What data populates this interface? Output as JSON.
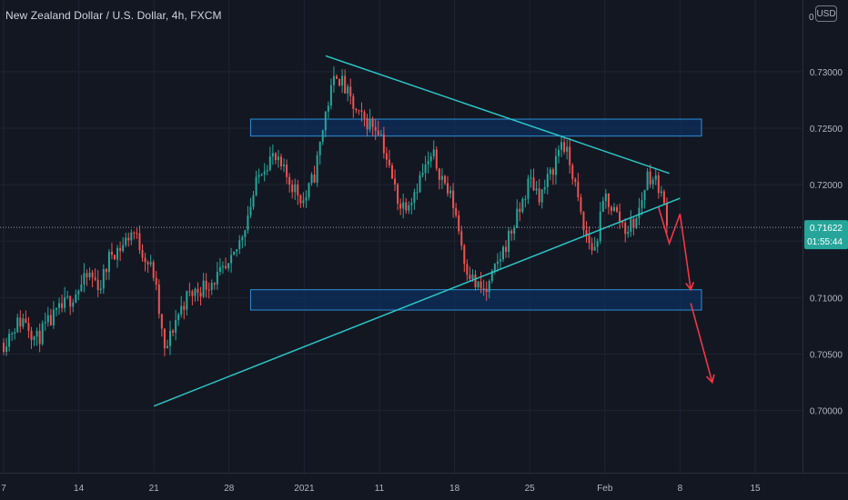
{
  "header": {
    "title": "New Zealand Dollar / U.S. Dollar, 4h, FXCM",
    "currency": "USD"
  },
  "colors": {
    "background": "#131722",
    "grid": "#1e2433",
    "up": "#26a69a",
    "down": "#ef5350",
    "trendline": "#2ac6c6",
    "zone_fill": "#0d2f5c",
    "zone_border": "#2b8fd6",
    "projection": "#f23645",
    "price_label_bg": "#26a69a",
    "axis_text": "#b2b5be"
  },
  "chart_data": {
    "type": "candlestick",
    "y_axis": {
      "range": [
        0.6945,
        0.7357
      ],
      "ticks": [
        0.7,
        0.705,
        0.71,
        0.715,
        0.72,
        0.725,
        0.73
      ],
      "tick_labels": [
        "0.70000",
        "0.70500",
        "0.71000",
        "0.71500",
        "0.72000",
        "0.72500",
        "0.73000"
      ],
      "top_clipped_label": "0"
    },
    "x_axis": {
      "ticks": [
        {
          "label": "7",
          "date": "2020-12-07"
        },
        {
          "label": "14",
          "date": "2020-12-14"
        },
        {
          "label": "21",
          "date": "2020-12-21"
        },
        {
          "label": "28",
          "date": "2020-12-28"
        },
        {
          "label": "2021",
          "date": "2021-01-04"
        },
        {
          "label": "11",
          "date": "2021-01-11"
        },
        {
          "label": "18",
          "date": "2021-01-18"
        },
        {
          "label": "25",
          "date": "2021-01-25"
        },
        {
          "label": "Feb",
          "date": "2021-02-01"
        },
        {
          "label": "8",
          "date": "2021-02-08"
        },
        {
          "label": "15",
          "date": "2021-02-15"
        }
      ]
    },
    "last_price": {
      "value": 0.71622,
      "label": "0.71622",
      "countdown": "01:55:44"
    },
    "candles_path": [
      [
        "2020-12-07",
        0.706
      ],
      [
        "2020-12-08",
        0.7075
      ],
      [
        "2020-12-09",
        0.7082
      ],
      [
        "2020-12-10",
        0.7062
      ],
      [
        "2020-12-11",
        0.7075
      ],
      [
        "2020-12-14",
        0.7108
      ],
      [
        "2020-12-15",
        0.712
      ],
      [
        "2020-12-16",
        0.711
      ],
      [
        "2020-12-17",
        0.714
      ],
      [
        "2020-12-18",
        0.7145
      ],
      [
        "2020-12-19",
        0.716
      ],
      [
        "2020-12-21",
        0.712
      ],
      [
        "2020-12-22",
        0.705
      ],
      [
        "2020-12-23",
        0.708
      ],
      [
        "2020-12-24",
        0.71
      ],
      [
        "2020-12-28",
        0.7125
      ],
      [
        "2020-12-29",
        0.715
      ],
      [
        "2020-12-31",
        0.7215
      ],
      [
        "2021-01-01",
        0.7225
      ],
      [
        "2021-01-04",
        0.7185
      ],
      [
        "2021-01-05",
        0.721
      ],
      [
        "2021-01-06",
        0.7265
      ],
      [
        "2021-01-07",
        0.73
      ],
      [
        "2021-01-08",
        0.728
      ],
      [
        "2021-01-09",
        0.726
      ],
      [
        "2021-01-11",
        0.725
      ],
      [
        "2021-01-12",
        0.721
      ],
      [
        "2021-01-13",
        0.718
      ],
      [
        "2021-01-14",
        0.719
      ],
      [
        "2021-01-15",
        0.721
      ],
      [
        "2021-01-16",
        0.7225
      ],
      [
        "2021-01-18",
        0.718
      ],
      [
        "2021-01-19",
        0.713
      ],
      [
        "2021-01-20",
        0.711
      ],
      [
        "2021-01-21",
        0.7105
      ],
      [
        "2021-01-22",
        0.713
      ],
      [
        "2021-01-24",
        0.7175
      ],
      [
        "2021-01-25",
        0.7205
      ],
      [
        "2021-01-26",
        0.719
      ],
      [
        "2021-01-27",
        0.721
      ],
      [
        "2021-01-28",
        0.724
      ],
      [
        "2021-01-29",
        0.721
      ],
      [
        "2021-01-30",
        0.716
      ],
      [
        "2021-01-31",
        0.714
      ],
      [
        "2021-02-01",
        0.719
      ],
      [
        "2021-02-02",
        0.7175
      ],
      [
        "2021-02-03",
        0.716
      ],
      [
        "2021-02-04",
        0.717
      ],
      [
        "2021-02-05",
        0.721
      ],
      [
        "2021-02-06",
        0.72
      ],
      [
        "2021-02-07",
        0.7162
      ]
    ],
    "trendlines": [
      {
        "name": "resistance",
        "from": [
          "2021-01-06",
          0.7314
        ],
        "to": [
          "2021-02-07",
          0.721
        ]
      },
      {
        "name": "support",
        "from": [
          "2020-12-21",
          0.7004
        ],
        "to": [
          "2021-02-08",
          0.7188
        ]
      }
    ],
    "zones": [
      {
        "name": "upper",
        "from_date": "2020-12-30",
        "to_date": "2021-02-10",
        "top": 0.7258,
        "bottom": 0.7243
      },
      {
        "name": "lower",
        "from_date": "2020-12-30",
        "to_date": "2021-02-10",
        "top": 0.7107,
        "bottom": 0.7089
      }
    ],
    "projections": [
      {
        "points": [
          [
            "2021-02-06",
            0.718
          ],
          [
            "2021-02-07",
            0.7148
          ],
          [
            "2021-02-08",
            0.7174
          ],
          [
            "2021-02-09",
            0.7107
          ]
        ]
      },
      {
        "points": [
          [
            "2021-02-09",
            0.7095
          ],
          [
            "2021-02-11",
            0.7025
          ]
        ]
      }
    ]
  }
}
